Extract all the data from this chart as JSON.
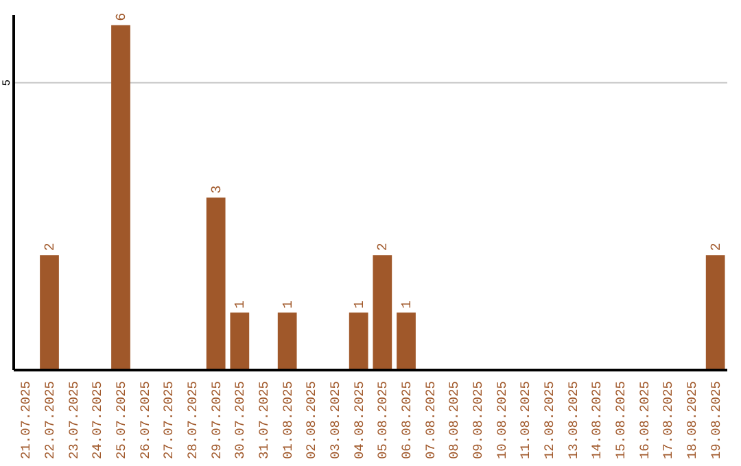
{
  "chart_data": {
    "type": "bar",
    "categories": [
      "21.07.2025",
      "22.07.2025",
      "23.07.2025",
      "24.07.2025",
      "25.07.2025",
      "26.07.2025",
      "27.07.2025",
      "28.07.2025",
      "29.07.2025",
      "30.07.2025",
      "31.07.2025",
      "01.08.2025",
      "02.08.2025",
      "03.08.2025",
      "04.08.2025",
      "05.08.2025",
      "06.08.2025",
      "07.08.2025",
      "08.08.2025",
      "09.08.2025",
      "10.08.2025",
      "11.08.2025",
      "12.08.2025",
      "13.08.2025",
      "14.08.2025",
      "15.08.2025",
      "16.08.2025",
      "17.08.2025",
      "18.08.2025",
      "19.08.2025"
    ],
    "values": [
      0,
      2,
      0,
      0,
      6,
      0,
      0,
      0,
      3,
      1,
      0,
      1,
      0,
      0,
      1,
      2,
      1,
      0,
      0,
      0,
      0,
      0,
      0,
      0,
      0,
      0,
      0,
      0,
      0,
      2
    ],
    "value_labels": [
      null,
      "2",
      null,
      null,
      "6",
      null,
      null,
      null,
      "3",
      "1",
      null,
      "1",
      null,
      null,
      "1",
      "2",
      "1",
      null,
      null,
      null,
      null,
      null,
      null,
      null,
      null,
      null,
      null,
      null,
      null,
      "2"
    ],
    "color": "#a0582a",
    "ylim": [
      0,
      6.2
    ],
    "yticks": [
      5
    ],
    "grid": "y"
  }
}
